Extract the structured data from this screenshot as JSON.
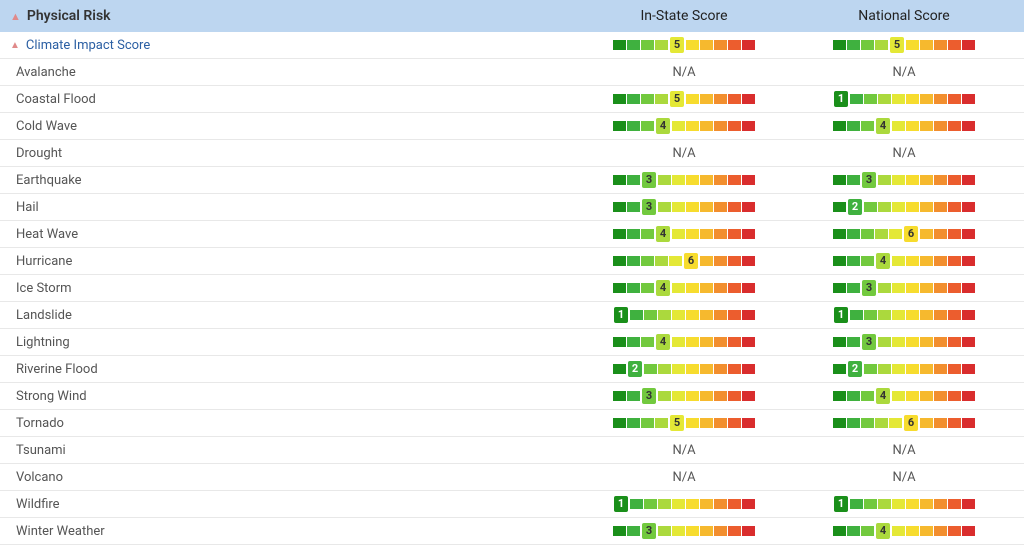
{
  "header": {
    "col1": "Physical Risk",
    "col2": "In-State Score",
    "col3": "National Score",
    "sort_indicator": "▲"
  },
  "na_label": "N/A",
  "gauge": {
    "segments": 10,
    "seg_width": 13,
    "colors": [
      "#1a8f1a",
      "#3fb13f",
      "#72c93e",
      "#abd93d",
      "#e4e836",
      "#f7dc2e",
      "#f6b92e",
      "#f28e2e",
      "#ec5d2e",
      "#d92d2d"
    ],
    "badge_text_light": "#ffffff",
    "badge_text_dark": "#333333"
  },
  "rows": [
    {
      "name": "Climate Impact Score",
      "parent": true,
      "in_state": 5,
      "national": 5
    },
    {
      "name": "Avalanche",
      "in_state": null,
      "national": null
    },
    {
      "name": "Coastal Flood",
      "in_state": 5,
      "national": 1
    },
    {
      "name": "Cold Wave",
      "in_state": 4,
      "national": 4
    },
    {
      "name": "Drought",
      "in_state": null,
      "national": null
    },
    {
      "name": "Earthquake",
      "in_state": 3,
      "national": 3
    },
    {
      "name": "Hail",
      "in_state": 3,
      "national": 2
    },
    {
      "name": "Heat Wave",
      "in_state": 4,
      "national": 6
    },
    {
      "name": "Hurricane",
      "in_state": 6,
      "national": 4
    },
    {
      "name": "Ice Storm",
      "in_state": 4,
      "national": 3
    },
    {
      "name": "Landslide",
      "in_state": 1,
      "national": 1
    },
    {
      "name": "Lightning",
      "in_state": 4,
      "national": 3
    },
    {
      "name": "Riverine Flood",
      "in_state": 2,
      "national": 2
    },
    {
      "name": "Strong Wind",
      "in_state": 3,
      "national": 4
    },
    {
      "name": "Tornado",
      "in_state": 5,
      "national": 6
    },
    {
      "name": "Tsunami",
      "in_state": null,
      "national": null
    },
    {
      "name": "Volcano",
      "in_state": null,
      "national": null
    },
    {
      "name": "Wildfire",
      "in_state": 1,
      "national": 1
    },
    {
      "name": "Winter Weather",
      "in_state": 3,
      "national": 4
    }
  ]
}
